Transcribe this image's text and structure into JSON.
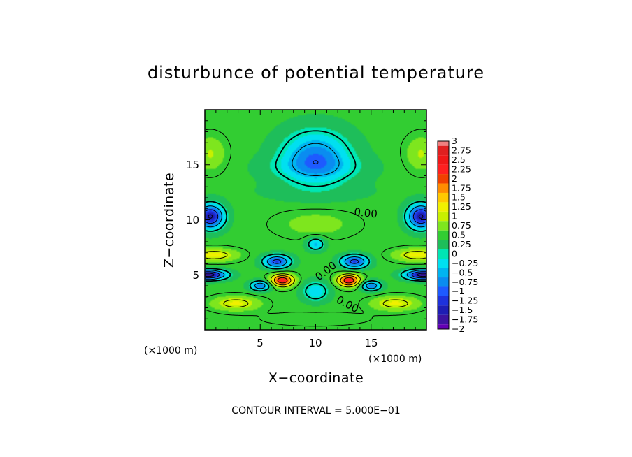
{
  "chart_data": {
    "type": "heatmap",
    "title": "disturbunce of potential temperature",
    "xlabel": "X−coordinate",
    "ylabel": "Z−coordinate",
    "x_unit": "(×1000 m)",
    "z_unit": "(×1000 m)",
    "xlim": [
      0,
      20
    ],
    "ylim": [
      0,
      20
    ],
    "x_ticks": [
      "5",
      "10",
      "15"
    ],
    "y_ticks": [
      "5",
      "10",
      "15"
    ],
    "footer": "CONTOUR INTERVAL = 5.000E−01",
    "contour_labels": [
      "0.00",
      "0.00",
      "0.00"
    ],
    "colorbar": {
      "labels": [
        "3",
        "2.75",
        "2.5",
        "2.25",
        "2",
        "1.75",
        "1.5",
        "1.25",
        "1",
        "0.75",
        "0.5",
        "0.25",
        "0",
        "−0.25",
        "−0.5",
        "−0.75",
        "−1",
        "−1.25",
        "−1.5",
        "−1.75",
        "−2"
      ],
      "colors": [
        "#f08080",
        "#e02020",
        "#f01818",
        "#ff2020",
        "#f04000",
        "#ff8c00",
        "#ffc800",
        "#f0f000",
        "#c8f000",
        "#7ee61e",
        "#32cd32",
        "#1ebe5a",
        "#00e6b4",
        "#00e0f0",
        "#00b4f0",
        "#0a8cf0",
        "#1e5aff",
        "#1e32dc",
        "#1e1eb4",
        "#3c14a0",
        "#6400b4"
      ]
    },
    "features": [
      {
        "x": 7.0,
        "z": 4.5,
        "value": 2.3
      },
      {
        "x": 13.0,
        "z": 4.5,
        "value": 2.3
      },
      {
        "x": 10.0,
        "z": 15.8,
        "value": -0.8
      },
      {
        "x": 1.0,
        "z": 10.3,
        "value": -1.6
      },
      {
        "x": 19.0,
        "z": 10.3,
        "value": -1.6
      },
      {
        "x": 0.8,
        "z": 5.0,
        "value": -1.8
      },
      {
        "x": 19.2,
        "z": 5.0,
        "value": -1.8
      },
      {
        "x": 2.5,
        "z": 2.5,
        "value": 1.0
      },
      {
        "x": 17.5,
        "z": 2.5,
        "value": 1.0
      },
      {
        "x": 0.8,
        "z": 6.8,
        "value": 1.0
      },
      {
        "x": 19.2,
        "z": 6.8,
        "value": 1.0
      },
      {
        "x": 10.0,
        "z": 9.7,
        "value": 0.55
      },
      {
        "x": 7.0,
        "z": 6.5,
        "value": -1.2
      },
      {
        "x": 13.0,
        "z": 6.5,
        "value": -1.2
      },
      {
        "x": 5.0,
        "z": 4.0,
        "value": -1.0
      },
      {
        "x": 15.0,
        "z": 4.0,
        "value": -1.0
      },
      {
        "x": 10.0,
        "z": 3.2,
        "value": -0.35
      },
      {
        "x": 1.0,
        "z": 16.0,
        "value": 0.8
      },
      {
        "x": 19.0,
        "z": 16.0,
        "value": 0.8
      }
    ]
  }
}
